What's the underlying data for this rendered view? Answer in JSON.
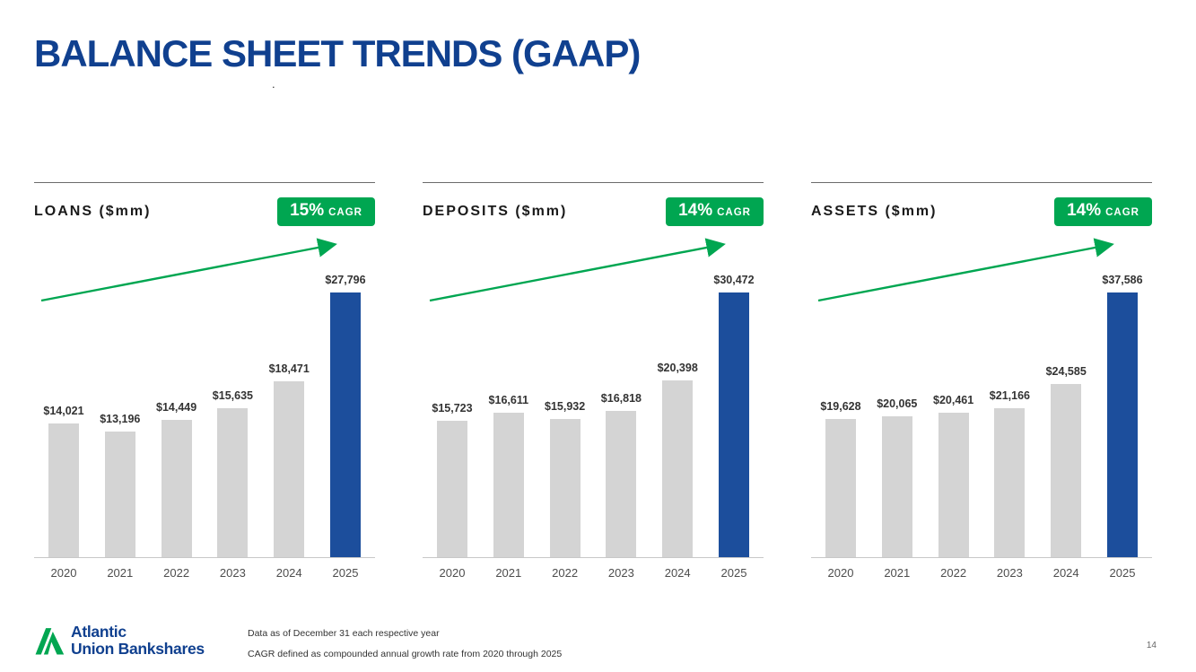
{
  "page": {
    "title": "BALANCE SHEET TRENDS (GAAP)",
    "stray_dot": ".",
    "page_number": "14"
  },
  "footer": {
    "logo_line1": "Atlantic",
    "logo_line2": "Union Bankshares",
    "footnote1": "Data as of December 31 each respective year",
    "footnote2": "CAGR defined as compounded annual growth rate from 2020 through 2025"
  },
  "colors": {
    "title_blue": "#10408F",
    "bar_blue": "#1C4E9C",
    "bar_gray": "#D4D4D4",
    "green": "#00A651"
  },
  "chart_data": [
    {
      "type": "bar",
      "title": "LOANS ($mm)",
      "cagr_pct": "15%",
      "cagr_word": "CAGR",
      "categories": [
        "2020",
        "2021",
        "2022",
        "2023",
        "2024",
        "2025"
      ],
      "values": [
        14021,
        13196,
        14449,
        15635,
        18471,
        27796
      ],
      "value_labels": [
        "$14,021",
        "$13,196",
        "$14,449",
        "$15,635",
        "$18,471",
        "$27,796"
      ],
      "highlight_index": 5,
      "units": "$mm",
      "legend": "off",
      "grid": "off"
    },
    {
      "type": "bar",
      "title": "DEPOSITS ($mm)",
      "cagr_pct": "14%",
      "cagr_word": "CAGR",
      "categories": [
        "2020",
        "2021",
        "2022",
        "2023",
        "2024",
        "2025"
      ],
      "values": [
        15723,
        16611,
        15932,
        16818,
        20398,
        30472
      ],
      "value_labels": [
        "$15,723",
        "$16,611",
        "$15,932",
        "$16,818",
        "$20,398",
        "$30,472"
      ],
      "highlight_index": 5,
      "units": "$mm",
      "legend": "off",
      "grid": "off"
    },
    {
      "type": "bar",
      "title": "ASSETS ($mm)",
      "cagr_pct": "14%",
      "cagr_word": "CAGR",
      "categories": [
        "2020",
        "2021",
        "2022",
        "2023",
        "2024",
        "2025"
      ],
      "values": [
        19628,
        20065,
        20461,
        21166,
        24585,
        37586
      ],
      "value_labels": [
        "$19,628",
        "$20,065",
        "$20,461",
        "$21,166",
        "$24,585",
        "$37,586"
      ],
      "highlight_index": 5,
      "units": "$mm",
      "legend": "off",
      "grid": "off"
    }
  ]
}
